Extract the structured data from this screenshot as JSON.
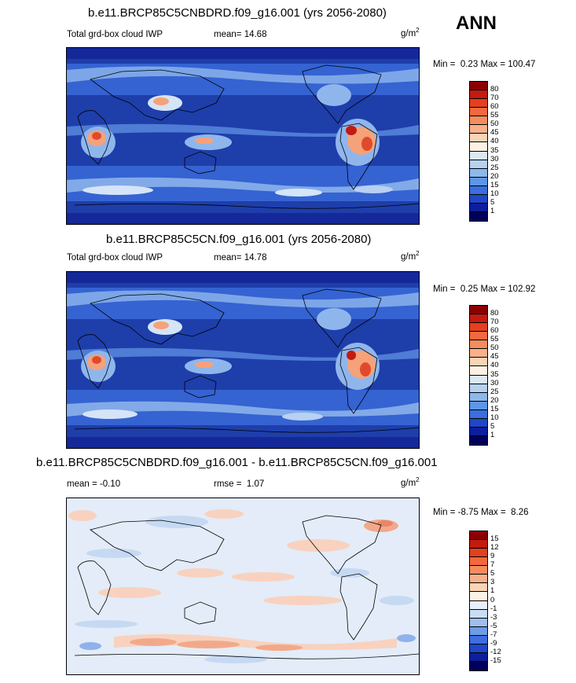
{
  "season": "ANN",
  "panels": [
    {
      "title": "b.e11.BRCP85C5CNBDRD.f09_g16.001 (yrs 2056-2080)",
      "field": "Total grd-box cloud IWP",
      "stat_label": "mean=",
      "stat_value": "14.68",
      "unit": "g/m",
      "unit_exp": "2",
      "min_label": "Min =",
      "min_value": "0.23",
      "max_label": "Max =",
      "max_value": "100.47"
    },
    {
      "title": "b.e11.BRCP85C5CN.f09_g16.001 (yrs 2056-2080)",
      "field": "Total grd-box cloud IWP",
      "stat_label": "mean=",
      "stat_value": "14.78",
      "unit": "g/m",
      "unit_exp": "2",
      "min_label": "Min =",
      "min_value": "0.25",
      "max_label": "Max =",
      "max_value": "102.92"
    },
    {
      "title": "b.e11.BRCP85C5CNBDRD.f09_g16.001 - b.e11.BRCP85C5CN.f09_g16.001",
      "mean_label": "mean =",
      "mean_value": "-0.10",
      "rmse_label": "rmse =",
      "rmse_value": "1.07",
      "unit": "g/m",
      "unit_exp": "2",
      "min_label": "Min =",
      "min_value": "-8.75",
      "max_label": "Max =",
      "max_value": "8.26"
    }
  ],
  "colorbar_abs": {
    "labels": [
      "80",
      "70",
      "60",
      "55",
      "50",
      "45",
      "40",
      "35",
      "30",
      "25",
      "20",
      "15",
      "10",
      "5",
      "1"
    ],
    "colors": [
      "#8b0000",
      "#c41a0f",
      "#e3401f",
      "#f06a3e",
      "#f58c5e",
      "#f9b08a",
      "#fcd3b6",
      "#fdf0e4",
      "#dae8f8",
      "#b5d2f2",
      "#8cb8ec",
      "#5f96e4",
      "#3a6fdc",
      "#1f47c8",
      "#0d1f9c",
      "#00005a"
    ],
    "field_colors": {
      "ocean_deep": "#1e3eaa",
      "ocean_mid": "#3563d2",
      "band_light": "#8fb6ec",
      "band_pale": "#d5e4f7",
      "tropic_hot": "#e04a2c",
      "tropic_warm": "#f5a27a"
    }
  },
  "colorbar_diff": {
    "labels": [
      "15",
      "12",
      "9",
      "7",
      "5",
      "3",
      "1",
      "0",
      "-1",
      "-3",
      "-5",
      "-7",
      "-9",
      "-12",
      "-15"
    ],
    "colors": [
      "#8b0000",
      "#c41a0f",
      "#e3401f",
      "#f06a3e",
      "#f58c5e",
      "#f9b08a",
      "#fcd3b6",
      "#fdf0e4",
      "#e6effb",
      "#c9dcf5",
      "#9dc0ee",
      "#6e9ce6",
      "#3f6ede",
      "#1f47c8",
      "#0d1f9c",
      "#00005a"
    ],
    "field_colors": {
      "background": "#e3ecf8",
      "pos_light": "#f8d2bf",
      "pos_mid": "#f2a98a",
      "neg_light": "#c6d9f3",
      "neg_mid": "#8eb2ea"
    }
  }
}
